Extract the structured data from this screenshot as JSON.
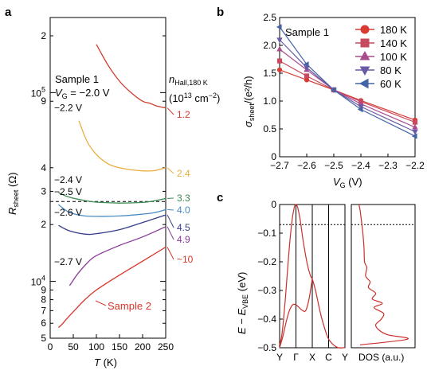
{
  "chart_data": [
    {
      "type": "line",
      "panel_label": "a",
      "xlabel_main": "T",
      "xlabel_unit": " (K)",
      "ylabel_main": "R",
      "ylabel_sub": "sheet",
      "ylabel_unit": " (Ω)",
      "xlim": [
        0,
        250
      ],
      "ylim": [
        5000,
        250000
      ],
      "yscale": "log",
      "x_ticks": [
        0,
        50,
        100,
        150,
        200,
        250
      ],
      "y_decades": [
        {
          "mant": "10",
          "exp": "4",
          "value": 10000
        },
        {
          "mant": "10",
          "exp": "5",
          "value": 100000
        }
      ],
      "y_minor_ticks": [
        {
          "label": "5",
          "value": 5000
        },
        {
          "label": "6",
          "value": 6000
        },
        {
          "label": "7",
          "value": 7000
        },
        {
          "label": "8",
          "value": 8000
        },
        {
          "label": "9",
          "value": 9000
        },
        {
          "label": "2",
          "value": 20000
        },
        {
          "label": "3",
          "value": 30000
        },
        {
          "label": "4",
          "value": 40000
        },
        {
          "label": "9",
          "value": 90000
        },
        {
          "label": "2",
          "value": 200000
        }
      ],
      "annotation_sample": "Sample 1",
      "annotation_vg_main": "V",
      "annotation_vg_sub": "G",
      "annotation_vg_value": " = −2.0 V",
      "density_header_main": "n",
      "density_header_sub": "Hall,180 K",
      "density_unit_pre": "(10",
      "density_unit_exp": "13",
      "density_unit_mid": " cm",
      "density_unit_exp2": "−2",
      "density_unit_post": ")",
      "dashed_line_value": 26500,
      "sample2_label": "Sample 2",
      "series": [
        {
          "gate": "",
          "density": "1.2",
          "color": "#d03c2f",
          "x": [
            100,
            125,
            150,
            175,
            200,
            215,
            230,
            250
          ],
          "y": [
            180000,
            140000,
            115000,
            100000,
            90000,
            88000,
            85000,
            83000
          ]
        },
        {
          "gate": "−2.2 V",
          "density": "2.4",
          "color": "#e8ad3d",
          "x": [
            62,
            80,
            100,
            125,
            150,
            175,
            200,
            225,
            250
          ],
          "y": [
            71000,
            55000,
            47000,
            42000,
            40000,
            39000,
            38500,
            38600,
            40000
          ]
        },
        {
          "gate": "−2.4 V",
          "density": "3.3",
          "color": "#3b8a4f",
          "x": [
            18,
            40,
            75,
            100,
            150,
            200,
            225,
            250
          ],
          "y": [
            29500,
            28000,
            26800,
            26300,
            26000,
            26200,
            26700,
            27500
          ]
        },
        {
          "gate": "−2.5 V",
          "density": "4.0",
          "color": "#4a8cc4",
          "x": [
            18,
            40,
            70,
            100,
            150,
            200,
            225,
            250
          ],
          "y": [
            25500,
            23300,
            22300,
            22100,
            22200,
            22700,
            23100,
            24000
          ]
        },
        {
          "gate": "−2.6 V",
          "density": "4.5",
          "color": "#353d8a",
          "x": [
            18,
            40,
            75,
            100,
            150,
            200,
            250
          ],
          "y": [
            19800,
            18600,
            17800,
            17900,
            18800,
            20500,
            22500
          ]
        },
        {
          "gate": "−2.7 V",
          "density": "4.9",
          "color": "#8a3a9a",
          "x": [
            42,
            60,
            80,
            100,
            150,
            200,
            250
          ],
          "y": [
            9500,
            11000,
            12500,
            13700,
            15500,
            17200,
            19500
          ]
        },
        {
          "gate": "",
          "density": "~10",
          "color": "#d8362a",
          "x": [
            18,
            25,
            35,
            50,
            75,
            100,
            150,
            200,
            250
          ],
          "y": [
            5700,
            5900,
            6300,
            6900,
            8000,
            9000,
            10800,
            12800,
            15200
          ]
        }
      ]
    },
    {
      "type": "line",
      "panel_label": "b",
      "xlabel_main": "V",
      "xlabel_sub": "G",
      "xlabel_unit": " (V)",
      "ylabel_main": "σ",
      "ylabel_sub": "sheet",
      "ylabel_unit": "/(e²/h)",
      "xlim": [
        -2.7,
        -2.2
      ],
      "ylim": [
        0,
        2.5
      ],
      "x_ticks": [
        -2.7,
        -2.6,
        -2.5,
        -2.4,
        -2.3,
        -2.2
      ],
      "x_tick_labels": [
        "−2.7",
        "−2.6",
        "−2.5",
        "−2.4",
        "−2.3",
        "−2.2"
      ],
      "y_ticks": [
        0,
        0.5,
        1.0,
        1.5,
        2.0,
        2.5
      ],
      "y_tick_labels": [
        "0",
        "0.5",
        "1.0",
        "1.5",
        "2.0",
        "2.5"
      ],
      "annotation": "Sample 1",
      "legend_position": "top-right",
      "series": [
        {
          "name": "180 K",
          "marker": "circle",
          "color": "#d93b34",
          "x": [
            -2.7,
            -2.6,
            -2.5,
            -2.4,
            -2.2
          ],
          "y": [
            1.56,
            1.38,
            1.2,
            1.01,
            0.66
          ]
        },
        {
          "name": "140 K",
          "marker": "square",
          "color": "#c84a5e",
          "x": [
            -2.7,
            -2.6,
            -2.5,
            -2.4,
            -2.2
          ],
          "y": [
            1.72,
            1.45,
            1.2,
            0.99,
            0.62
          ]
        },
        {
          "name": "100 K",
          "marker": "triangle-up",
          "color": "#a84b8c",
          "x": [
            -2.7,
            -2.6,
            -2.5,
            -2.4,
            -2.2
          ],
          "y": [
            1.93,
            1.56,
            1.2,
            0.95,
            0.53
          ]
        },
        {
          "name": "80 K",
          "marker": "triangle-down",
          "color": "#6a5aa6",
          "x": [
            -2.7,
            -2.6,
            -2.5,
            -2.4,
            -2.2
          ],
          "y": [
            2.1,
            1.6,
            1.2,
            0.9,
            0.45
          ]
        },
        {
          "name": "60 K",
          "marker": "triangle-left",
          "color": "#4563a6",
          "x": [
            -2.7,
            -2.6,
            -2.5,
            -2.4,
            -2.2
          ],
          "y": [
            2.33,
            1.66,
            1.2,
            0.85,
            0.37
          ]
        }
      ]
    },
    {
      "type": "line",
      "panel_label": "c",
      "ylabel_main": "E − E",
      "ylabel_sub": "VBE",
      "ylabel_unit": " (eV)",
      "ylim": [
        -0.5,
        0
      ],
      "y_ticks": [
        0,
        -0.1,
        -0.2,
        -0.3,
        -0.4,
        -0.5
      ],
      "y_tick_labels": [
        "0",
        "−0.1",
        "−0.2",
        "−0.3",
        "−0.4",
        "−0.5"
      ],
      "k_labels": [
        "Y",
        "Γ",
        "X",
        "C",
        "Y"
      ],
      "k_positions": [
        0,
        1,
        2,
        3,
        4
      ],
      "dotted_line_value": -0.07,
      "dos_xlabel": "DOS (a.u.)",
      "line_color": "#c9302c",
      "bands": [
        {
          "k": [
            0,
            0.15,
            0.35,
            0.55,
            0.75,
            0.9,
            1.0,
            1.1,
            1.25,
            1.45,
            1.7,
            1.9,
            2.0,
            2.2,
            2.5,
            2.8,
            3.0,
            3.3,
            3.6,
            3.9,
            4.0
          ],
          "e": [
            -0.49,
            -0.45,
            -0.33,
            -0.18,
            -0.06,
            -0.01,
            0.0,
            -0.01,
            -0.05,
            -0.13,
            -0.21,
            -0.25,
            -0.26,
            -0.3,
            -0.38,
            -0.44,
            -0.47,
            -0.49,
            -0.5,
            -0.5,
            -0.5
          ]
        },
        {
          "k": [
            0,
            0.2,
            0.4,
            0.6,
            0.8,
            1.0,
            1.2,
            1.4,
            1.6,
            1.8,
            2.0
          ],
          "e": [
            -0.5,
            -0.46,
            -0.41,
            -0.37,
            -0.35,
            -0.35,
            -0.36,
            -0.37,
            -0.37,
            -0.33,
            -0.26
          ]
        }
      ],
      "dos": {
        "e": [
          -0.49,
          -0.47,
          -0.455,
          -0.44,
          -0.42,
          -0.4,
          -0.38,
          -0.36,
          -0.345,
          -0.33,
          -0.31,
          -0.29,
          -0.27,
          -0.25,
          -0.22,
          -0.2,
          -0.15,
          -0.1,
          -0.05,
          -0.02,
          0.0
        ],
        "d": [
          0.1,
          0.95,
          0.6,
          0.45,
          0.38,
          0.48,
          0.52,
          0.35,
          0.5,
          0.32,
          0.38,
          0.25,
          0.28,
          0.2,
          0.22,
          0.18,
          0.17,
          0.15,
          0.12,
          0.1,
          0.08
        ]
      }
    }
  ]
}
